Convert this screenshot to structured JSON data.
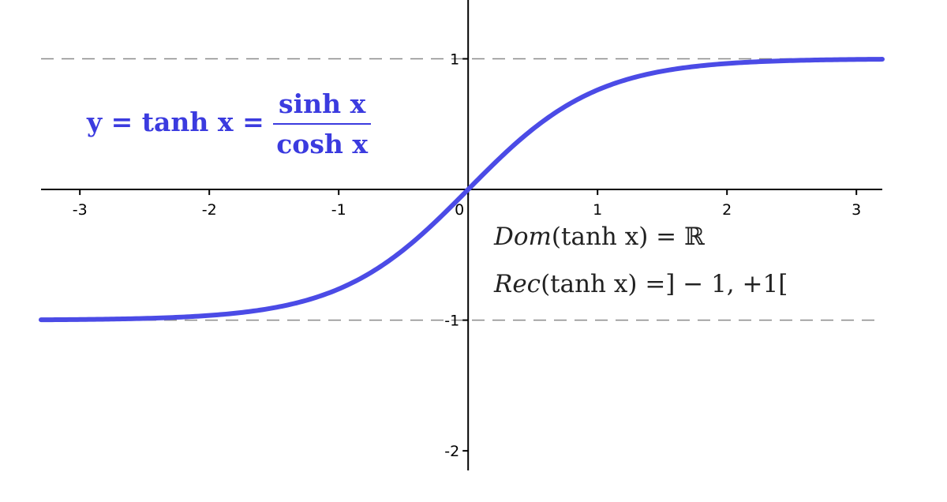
{
  "chart_data": {
    "type": "line",
    "function": "tanh",
    "xlim": [
      -3.3,
      3.2
    ],
    "ylim": [
      -2.15,
      1.45
    ],
    "x_ticks": [
      "-3",
      "-2",
      "-1",
      "0",
      "1",
      "2",
      "3"
    ],
    "y_ticks": [
      "1",
      "-1",
      "-2"
    ],
    "asymptotes": [
      1,
      -1
    ],
    "series": [
      {
        "color": "#4b4be6",
        "x": [
          -3.3,
          -3,
          -2.5,
          -2,
          -1.5,
          -1,
          -0.75,
          -0.5,
          -0.25,
          0,
          0.25,
          0.5,
          0.75,
          1,
          1.5,
          2,
          2.5,
          3,
          3.2
        ],
        "y": [
          -0.997,
          -0.995,
          -0.987,
          -0.964,
          -0.905,
          -0.762,
          -0.635,
          -0.462,
          -0.245,
          0,
          0.245,
          0.462,
          0.635,
          0.762,
          0.905,
          0.964,
          0.987,
          0.995,
          0.997
        ]
      }
    ],
    "equation": {
      "lhs": "y = tanh x = ",
      "numerator": "sinh x",
      "denominator": "cosh x",
      "color": "#3b3bdf"
    },
    "annotations": [
      {
        "func": "Dom",
        "arg": "(tanh x)",
        "rest": " = ℝ"
      },
      {
        "func": "Rec",
        "arg": "(tanh x)",
        "rest": " =] − 1, +1["
      }
    ]
  }
}
